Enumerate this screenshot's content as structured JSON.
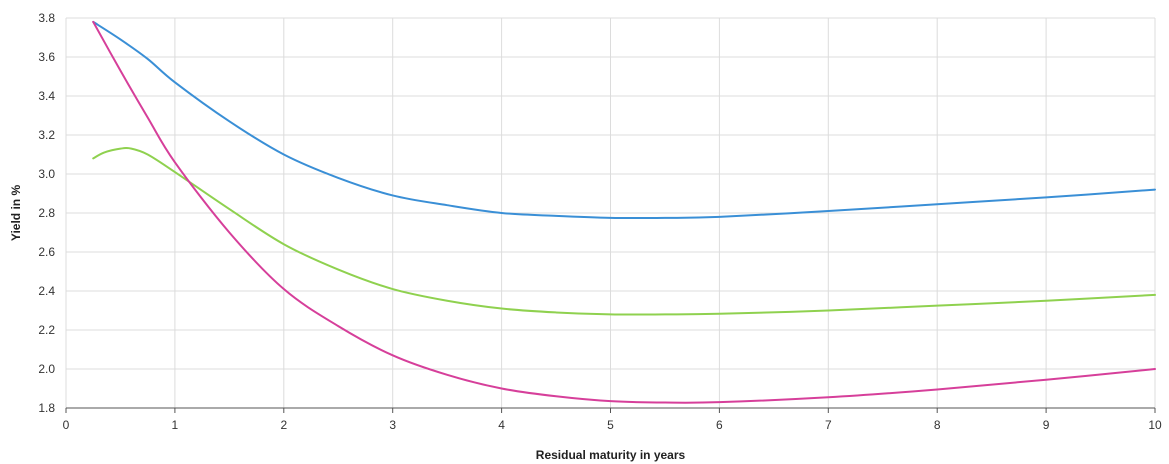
{
  "chart_data": {
    "type": "line",
    "title": "",
    "xlabel": "Residual maturity in years",
    "ylabel": "Yield in %",
    "xlim": [
      0,
      10
    ],
    "ylim": [
      1.8,
      3.8
    ],
    "xticks": [
      "0",
      "1",
      "2",
      "3",
      "4",
      "5",
      "6",
      "7",
      "8",
      "9",
      "10"
    ],
    "yticks": [
      "1.8",
      "2.0",
      "2.2",
      "2.4",
      "2.6",
      "2.8",
      "3.0",
      "3.2",
      "3.4",
      "3.6",
      "3.8"
    ],
    "grid": true,
    "legend": "none",
    "series": [
      {
        "color": "#3a8fd6",
        "points": [
          [
            0.25,
            3.78
          ],
          [
            0.5,
            3.69
          ],
          [
            0.75,
            3.59
          ],
          [
            1,
            3.47
          ],
          [
            1.5,
            3.27
          ],
          [
            2,
            3.1
          ],
          [
            2.5,
            2.98
          ],
          [
            3,
            2.89
          ],
          [
            3.5,
            2.84
          ],
          [
            4,
            2.8
          ],
          [
            4.5,
            2.785
          ],
          [
            5,
            2.775
          ],
          [
            5.5,
            2.775
          ],
          [
            6,
            2.78
          ],
          [
            7,
            2.81
          ],
          [
            8,
            2.845
          ],
          [
            9,
            2.88
          ],
          [
            10,
            2.92
          ]
        ]
      },
      {
        "color": "#8fd14f",
        "points": [
          [
            0.25,
            3.08
          ],
          [
            0.35,
            3.11
          ],
          [
            0.5,
            3.13
          ],
          [
            0.6,
            3.13
          ],
          [
            0.75,
            3.1
          ],
          [
            1,
            3.01
          ],
          [
            1.5,
            2.82
          ],
          [
            2,
            2.64
          ],
          [
            2.5,
            2.51
          ],
          [
            3,
            2.41
          ],
          [
            3.5,
            2.35
          ],
          [
            4,
            2.31
          ],
          [
            4.5,
            2.29
          ],
          [
            5,
            2.28
          ],
          [
            5.5,
            2.28
          ],
          [
            6,
            2.283
          ],
          [
            7,
            2.3
          ],
          [
            8,
            2.325
          ],
          [
            9,
            2.35
          ],
          [
            10,
            2.38
          ]
        ]
      },
      {
        "color": "#d63f9a",
        "points": [
          [
            0.25,
            3.78
          ],
          [
            0.5,
            3.53
          ],
          [
            0.75,
            3.29
          ],
          [
            1,
            3.06
          ],
          [
            1.5,
            2.7
          ],
          [
            2,
            2.41
          ],
          [
            2.5,
            2.22
          ],
          [
            3,
            2.07
          ],
          [
            3.5,
            1.97
          ],
          [
            4,
            1.9
          ],
          [
            4.5,
            1.86
          ],
          [
            5,
            1.835
          ],
          [
            5.5,
            1.828
          ],
          [
            6,
            1.83
          ],
          [
            7,
            1.855
          ],
          [
            8,
            1.895
          ],
          [
            9,
            1.945
          ],
          [
            10,
            2.0
          ]
        ]
      }
    ]
  }
}
